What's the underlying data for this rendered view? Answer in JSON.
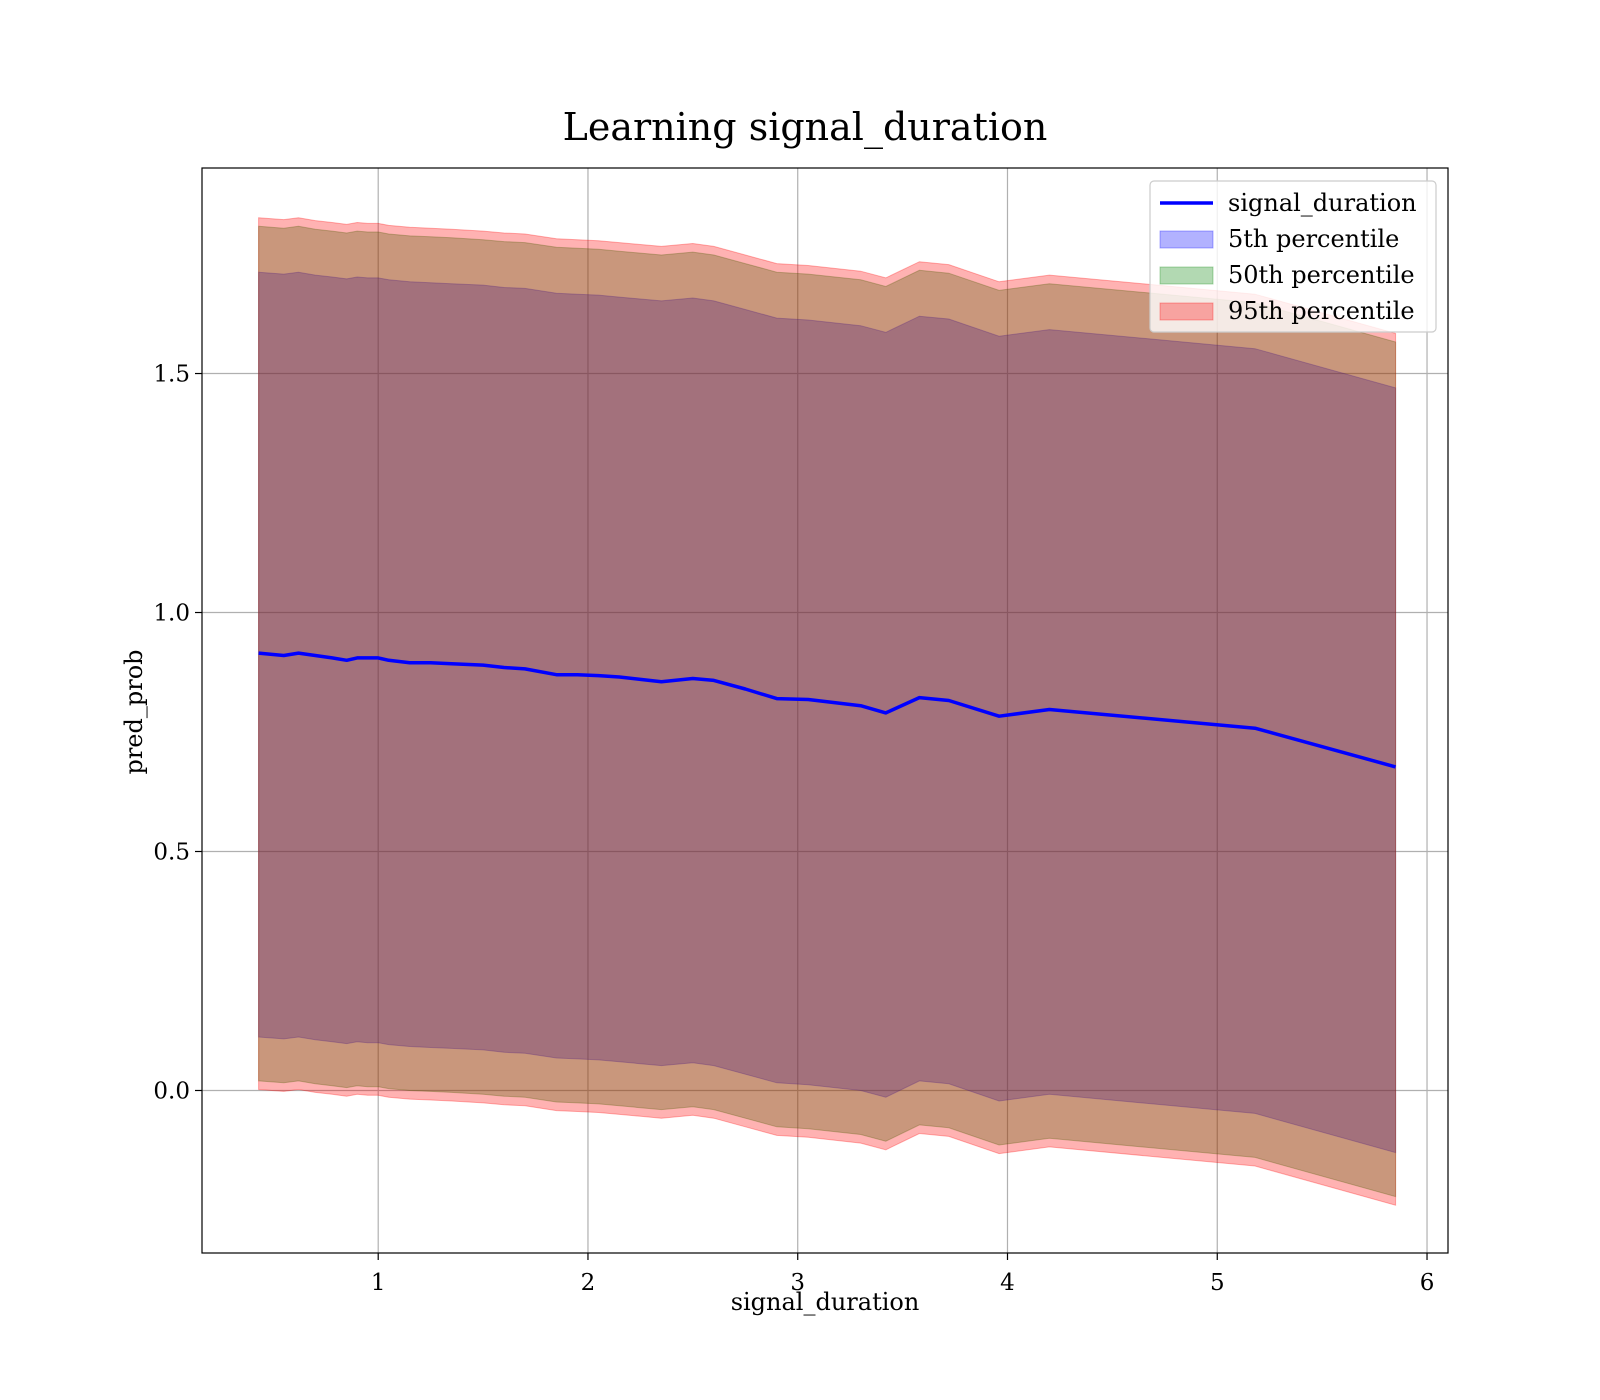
{
  "chart_data": {
    "type": "line",
    "title": "Learning signal_duration",
    "xlabel": "signal_duration",
    "ylabel": "pred_prob",
    "xlim": [
      0.16,
      6.1
    ],
    "ylim": [
      -0.34,
      1.93
    ],
    "xticks": [
      1,
      2,
      3,
      4,
      5,
      6
    ],
    "yticks": [
      0.0,
      0.5,
      1.0,
      1.5
    ],
    "grid": true,
    "legend_position": "top-right",
    "x": [
      0.43,
      0.55,
      0.62,
      0.7,
      0.78,
      0.85,
      0.9,
      0.95,
      1.0,
      1.05,
      1.15,
      1.25,
      1.35,
      1.5,
      1.6,
      1.7,
      1.85,
      1.95,
      2.05,
      2.15,
      2.25,
      2.35,
      2.5,
      2.6,
      2.75,
      2.9,
      3.05,
      3.3,
      3.42,
      3.58,
      3.72,
      3.96,
      4.2,
      5.18,
      5.85
    ],
    "series": [
      {
        "name": "signal_duration",
        "type": "line",
        "color": "#0000ff",
        "values": [
          0.915,
          0.91,
          0.915,
          0.91,
          0.905,
          0.9,
          0.905,
          0.905,
          0.905,
          0.9,
          0.895,
          0.895,
          0.893,
          0.89,
          0.885,
          0.882,
          0.87,
          0.87,
          0.868,
          0.865,
          0.86,
          0.855,
          0.862,
          0.858,
          0.84,
          0.82,
          0.818,
          0.805,
          0.79,
          0.822,
          0.816,
          0.783,
          0.797,
          0.758,
          0.677
        ]
      },
      {
        "name": "5th percentile",
        "type": "band",
        "color": "#0000ff",
        "lower": [
          0.112,
          0.108,
          0.112,
          0.106,
          0.102,
          0.098,
          0.102,
          0.1,
          0.1,
          0.096,
          0.092,
          0.09,
          0.088,
          0.085,
          0.08,
          0.078,
          0.068,
          0.066,
          0.064,
          0.06,
          0.056,
          0.052,
          0.058,
          0.052,
          0.034,
          0.016,
          0.012,
          0.0,
          -0.014,
          0.02,
          0.014,
          -0.022,
          -0.008,
          -0.048,
          -0.13
        ],
        "upper": [
          1.712,
          1.708,
          1.712,
          1.706,
          1.702,
          1.698,
          1.702,
          1.7,
          1.7,
          1.696,
          1.692,
          1.69,
          1.688,
          1.685,
          1.68,
          1.678,
          1.668,
          1.666,
          1.664,
          1.66,
          1.656,
          1.652,
          1.658,
          1.652,
          1.634,
          1.616,
          1.612,
          1.6,
          1.586,
          1.62,
          1.614,
          1.578,
          1.592,
          1.552,
          1.47
        ]
      },
      {
        "name": "50th percentile",
        "type": "band",
        "color": "#008000",
        "lower": [
          0.02,
          0.016,
          0.02,
          0.014,
          0.01,
          0.006,
          0.01,
          0.008,
          0.008,
          0.004,
          0.0,
          -0.002,
          -0.004,
          -0.008,
          -0.012,
          -0.014,
          -0.024,
          -0.026,
          -0.028,
          -0.032,
          -0.036,
          -0.04,
          -0.034,
          -0.04,
          -0.058,
          -0.076,
          -0.08,
          -0.092,
          -0.106,
          -0.072,
          -0.078,
          -0.114,
          -0.1,
          -0.14,
          -0.222
        ],
        "upper": [
          1.808,
          1.804,
          1.808,
          1.802,
          1.798,
          1.794,
          1.798,
          1.796,
          1.796,
          1.792,
          1.788,
          1.786,
          1.784,
          1.78,
          1.776,
          1.774,
          1.764,
          1.762,
          1.76,
          1.756,
          1.752,
          1.748,
          1.754,
          1.748,
          1.73,
          1.712,
          1.708,
          1.696,
          1.682,
          1.716,
          1.71,
          1.674,
          1.688,
          1.648,
          1.566
        ]
      },
      {
        "name": "95th percentile",
        "type": "band",
        "color": "#ff0000",
        "lower": [
          0.002,
          -0.002,
          0.002,
          -0.004,
          -0.008,
          -0.012,
          -0.008,
          -0.01,
          -0.01,
          -0.014,
          -0.018,
          -0.02,
          -0.022,
          -0.026,
          -0.03,
          -0.032,
          -0.042,
          -0.044,
          -0.046,
          -0.05,
          -0.054,
          -0.058,
          -0.052,
          -0.058,
          -0.076,
          -0.094,
          -0.098,
          -0.11,
          -0.124,
          -0.09,
          -0.096,
          -0.132,
          -0.118,
          -0.158,
          -0.24
        ],
        "upper": [
          1.826,
          1.822,
          1.826,
          1.82,
          1.816,
          1.812,
          1.816,
          1.814,
          1.814,
          1.81,
          1.806,
          1.804,
          1.802,
          1.798,
          1.794,
          1.792,
          1.782,
          1.78,
          1.778,
          1.774,
          1.77,
          1.766,
          1.772,
          1.766,
          1.748,
          1.73,
          1.726,
          1.714,
          1.7,
          1.734,
          1.728,
          1.692,
          1.706,
          1.666,
          1.584
        ]
      }
    ]
  }
}
